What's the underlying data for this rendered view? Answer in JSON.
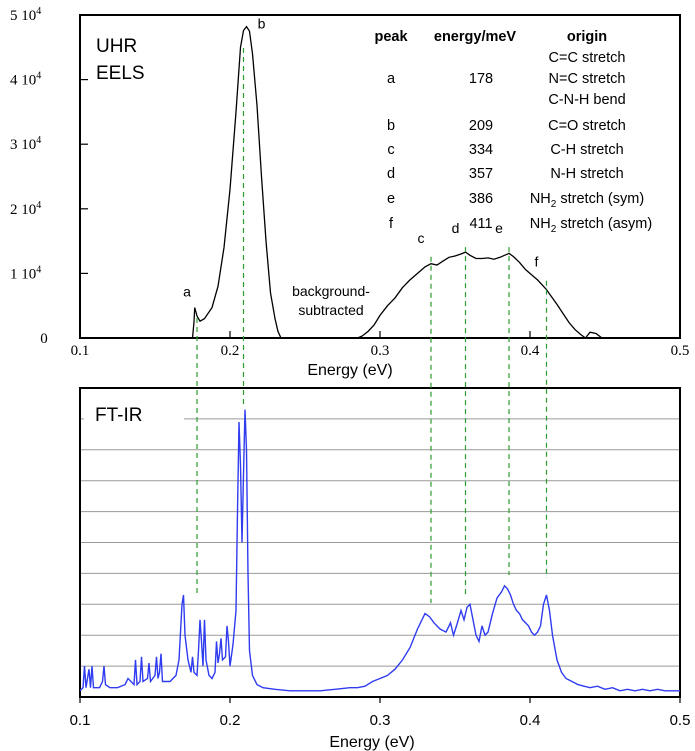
{
  "colors": {
    "eels_line": "#000000",
    "ftir_line": "#2f3cf0",
    "guide_line": "#2e9b2e",
    "grid": "#9a9a9a"
  },
  "chart_data": [
    {
      "type": "line",
      "panel_label": [
        "UHR",
        "EELS"
      ],
      "xlabel": "Energy (eV)",
      "ylabel": "",
      "xlim": [
        0.1,
        0.5
      ],
      "ylim": [
        0,
        50000
      ],
      "x_ticks": [
        "0.1",
        "0.2",
        "0.3",
        "0.4",
        "0.5"
      ],
      "y_ticks": [
        {
          "value": 0,
          "label": "0"
        },
        {
          "value": 10000,
          "mant": "1 10",
          "exp": "4"
        },
        {
          "value": 20000,
          "mant": "2 10",
          "exp": "4"
        },
        {
          "value": 30000,
          "mant": "3 10",
          "exp": "4"
        },
        {
          "value": 40000,
          "mant": "4 10",
          "exp": "4"
        },
        {
          "value": 50000,
          "mant": "5 10",
          "exp": "4"
        }
      ],
      "series_points": [
        [
          0.175,
          0
        ],
        [
          0.176,
          2500
        ],
        [
          0.1765,
          4700
        ],
        [
          0.178,
          3400
        ],
        [
          0.18,
          2600
        ],
        [
          0.183,
          3000
        ],
        [
          0.188,
          4700
        ],
        [
          0.192,
          8000
        ],
        [
          0.196,
          14000
        ],
        [
          0.2,
          23000
        ],
        [
          0.204,
          35000
        ],
        [
          0.207,
          45000
        ],
        [
          0.209,
          47600
        ],
        [
          0.211,
          48200
        ],
        [
          0.213,
          47500
        ],
        [
          0.215,
          44000
        ],
        [
          0.218,
          36000
        ],
        [
          0.221,
          25000
        ],
        [
          0.224,
          15000
        ],
        [
          0.227,
          7000
        ],
        [
          0.23,
          3000
        ],
        [
          0.232,
          1000
        ],
        [
          0.234,
          0
        ],
        null,
        [
          0.285,
          0
        ],
        [
          0.288,
          300
        ],
        [
          0.292,
          1000
        ],
        [
          0.296,
          2000
        ],
        [
          0.3,
          3500
        ],
        [
          0.305,
          5000
        ],
        [
          0.31,
          6200
        ],
        [
          0.315,
          7800
        ],
        [
          0.32,
          9000
        ],
        [
          0.325,
          10000
        ],
        [
          0.33,
          11000
        ],
        [
          0.334,
          11500
        ],
        [
          0.338,
          11300
        ],
        [
          0.342,
          11900
        ],
        [
          0.346,
          12500
        ],
        [
          0.35,
          12700
        ],
        [
          0.354,
          13000
        ],
        [
          0.357,
          13300
        ],
        [
          0.36,
          12800
        ],
        [
          0.364,
          12300
        ],
        [
          0.368,
          12300
        ],
        [
          0.372,
          12400
        ],
        [
          0.376,
          12200
        ],
        [
          0.38,
          12500
        ],
        [
          0.384,
          12900
        ],
        [
          0.386,
          13100
        ],
        [
          0.389,
          12600
        ],
        [
          0.393,
          11700
        ],
        [
          0.397,
          10600
        ],
        [
          0.401,
          9800
        ],
        [
          0.405,
          9000
        ],
        [
          0.409,
          8000
        ],
        [
          0.411,
          7500
        ],
        [
          0.414,
          6500
        ],
        [
          0.418,
          5200
        ],
        [
          0.422,
          3800
        ],
        [
          0.426,
          2400
        ],
        [
          0.43,
          1300
        ],
        [
          0.434,
          500
        ],
        [
          0.437,
          0
        ],
        [
          0.44,
          900
        ],
        [
          0.444,
          700
        ],
        [
          0.448,
          0
        ]
      ],
      "peak_markers": [
        {
          "label": "a",
          "x": 0.178,
          "y": 5200
        },
        {
          "label": "b",
          "x": 0.209,
          "y": 48500
        },
        {
          "label": "c",
          "x": 0.334,
          "y": 13500
        },
        {
          "label": "d",
          "x": 0.357,
          "y": 15000
        },
        {
          "label": "e",
          "x": 0.386,
          "y": 15000
        },
        {
          "label": "f",
          "x": 0.411,
          "y": 9800
        }
      ],
      "annotation": [
        "background-",
        "subtracted"
      ],
      "table": {
        "headers": [
          "peak",
          "energy/meV",
          "origin"
        ],
        "rows": [
          {
            "peak": "a",
            "energy": "178",
            "origin": [
              "C=C stretch",
              "N=C stretch",
              "C-N-H bend"
            ]
          },
          {
            "peak": "b",
            "energy": "209",
            "origin": [
              "C=O stretch"
            ]
          },
          {
            "peak": "c",
            "energy": "334",
            "origin": [
              "C-H stretch"
            ]
          },
          {
            "peak": "d",
            "energy": "357",
            "origin": [
              "N-H stretch"
            ]
          },
          {
            "peak": "e",
            "energy": "386",
            "origin_pre": "NH",
            "origin_sub": "2",
            "origin_post": " stretch (sym)"
          },
          {
            "peak": "f",
            "energy": "411",
            "origin_pre": "NH",
            "origin_sub": "2",
            "origin_post": " stretch (asym)"
          }
        ]
      }
    },
    {
      "type": "line",
      "panel_label": "FT-IR",
      "xlabel": "Energy (eV)",
      "ylabel": "",
      "xlim": [
        0.1,
        0.5
      ],
      "ylim": [
        0,
        10
      ],
      "grid": true,
      "x_ticks": [
        "0.1",
        "0.2",
        "0.3",
        "0.4",
        "0.5"
      ],
      "series_points": [
        [
          0.1,
          0.2
        ],
        [
          0.102,
          0.3
        ],
        [
          0.103,
          1.0
        ],
        [
          0.104,
          0.3
        ],
        [
          0.106,
          0.9
        ],
        [
          0.107,
          0.3
        ],
        [
          0.108,
          1.0
        ],
        [
          0.109,
          0.3
        ],
        [
          0.113,
          0.3
        ],
        [
          0.115,
          0.5
        ],
        [
          0.116,
          1.0
        ],
        [
          0.117,
          0.4
        ],
        [
          0.12,
          0.3
        ],
        [
          0.125,
          0.3
        ],
        [
          0.13,
          0.4
        ],
        [
          0.132,
          0.6
        ],
        [
          0.134,
          0.5
        ],
        [
          0.136,
          0.4
        ],
        [
          0.137,
          1.2
        ],
        [
          0.138,
          0.4
        ],
        [
          0.14,
          0.5
        ],
        [
          0.141,
          1.3
        ],
        [
          0.142,
          0.5
        ],
        [
          0.145,
          0.6
        ],
        [
          0.146,
          1.1
        ],
        [
          0.147,
          0.5
        ],
        [
          0.15,
          0.7
        ],
        [
          0.151,
          1.3
        ],
        [
          0.152,
          0.6
        ],
        [
          0.153,
          0.8
        ],
        [
          0.154,
          1.4
        ],
        [
          0.155,
          0.5
        ],
        [
          0.16,
          0.5
        ],
        [
          0.164,
          0.7
        ],
        [
          0.166,
          1.2
        ],
        [
          0.168,
          3.0
        ],
        [
          0.169,
          3.3
        ],
        [
          0.17,
          2.0
        ],
        [
          0.172,
          1.2
        ],
        [
          0.174,
          0.8
        ],
        [
          0.175,
          1.3
        ],
        [
          0.176,
          0.8
        ],
        [
          0.178,
          0.7
        ],
        [
          0.179,
          1.5
        ],
        [
          0.18,
          2.5
        ],
        [
          0.181,
          1.8
        ],
        [
          0.182,
          1.0
        ],
        [
          0.183,
          2.5
        ],
        [
          0.184,
          1.2
        ],
        [
          0.186,
          0.7
        ],
        [
          0.188,
          0.6
        ],
        [
          0.19,
          0.8
        ],
        [
          0.191,
          1.8
        ],
        [
          0.192,
          1.1
        ],
        [
          0.193,
          1.4
        ],
        [
          0.194,
          1.9
        ],
        [
          0.195,
          1.2
        ],
        [
          0.197,
          1.3
        ],
        [
          0.198,
          2.3
        ],
        [
          0.199,
          1.8
        ],
        [
          0.2,
          1.0
        ],
        [
          0.202,
          1.7
        ],
        [
          0.204,
          2.8
        ],
        [
          0.205,
          6.0
        ],
        [
          0.206,
          8.9
        ],
        [
          0.207,
          7.5
        ],
        [
          0.208,
          5.0
        ],
        [
          0.209,
          7.2
        ],
        [
          0.21,
          9.3
        ],
        [
          0.211,
          8.0
        ],
        [
          0.212,
          4.0
        ],
        [
          0.213,
          1.5
        ],
        [
          0.215,
          0.7
        ],
        [
          0.218,
          0.4
        ],
        [
          0.222,
          0.3
        ],
        [
          0.23,
          0.25
        ],
        [
          0.24,
          0.2
        ],
        [
          0.25,
          0.2
        ],
        [
          0.26,
          0.2
        ],
        [
          0.27,
          0.25
        ],
        [
          0.28,
          0.3
        ],
        [
          0.285,
          0.3
        ],
        [
          0.29,
          0.35
        ],
        [
          0.295,
          0.5
        ],
        [
          0.3,
          0.6
        ],
        [
          0.305,
          0.7
        ],
        [
          0.31,
          0.9
        ],
        [
          0.315,
          1.2
        ],
        [
          0.32,
          1.6
        ],
        [
          0.325,
          2.2
        ],
        [
          0.33,
          2.7
        ],
        [
          0.333,
          2.6
        ],
        [
          0.336,
          2.4
        ],
        [
          0.34,
          2.2
        ],
        [
          0.344,
          2.1
        ],
        [
          0.347,
          2.4
        ],
        [
          0.349,
          2.0
        ],
        [
          0.351,
          2.3
        ],
        [
          0.354,
          2.8
        ],
        [
          0.356,
          2.5
        ],
        [
          0.358,
          2.9
        ],
        [
          0.36,
          3.0
        ],
        [
          0.362,
          2.5
        ],
        [
          0.364,
          2.0
        ],
        [
          0.366,
          1.8
        ],
        [
          0.368,
          2.3
        ],
        [
          0.37,
          2.0
        ],
        [
          0.372,
          2.1
        ],
        [
          0.375,
          2.7
        ],
        [
          0.378,
          3.2
        ],
        [
          0.381,
          3.4
        ],
        [
          0.383,
          3.6
        ],
        [
          0.385,
          3.5
        ],
        [
          0.387,
          3.3
        ],
        [
          0.389,
          3.0
        ],
        [
          0.391,
          2.8
        ],
        [
          0.393,
          2.7
        ],
        [
          0.395,
          2.5
        ],
        [
          0.397,
          2.4
        ],
        [
          0.399,
          2.3
        ],
        [
          0.401,
          2.1
        ],
        [
          0.403,
          2.0
        ],
        [
          0.405,
          2.1
        ],
        [
          0.407,
          2.3
        ],
        [
          0.409,
          3.0
        ],
        [
          0.411,
          3.3
        ],
        [
          0.413,
          2.8
        ],
        [
          0.415,
          2.0
        ],
        [
          0.418,
          1.2
        ],
        [
          0.421,
          0.8
        ],
        [
          0.424,
          0.6
        ],
        [
          0.428,
          0.5
        ],
        [
          0.432,
          0.4
        ],
        [
          0.436,
          0.35
        ],
        [
          0.44,
          0.3
        ],
        [
          0.445,
          0.35
        ],
        [
          0.45,
          0.25
        ],
        [
          0.455,
          0.3
        ],
        [
          0.46,
          0.2
        ],
        [
          0.465,
          0.25
        ],
        [
          0.47,
          0.2
        ],
        [
          0.475,
          0.25
        ],
        [
          0.48,
          0.2
        ],
        [
          0.485,
          0.25
        ],
        [
          0.49,
          0.2
        ],
        [
          0.495,
          0.2
        ],
        [
          0.5,
          0.2
        ]
      ]
    }
  ]
}
